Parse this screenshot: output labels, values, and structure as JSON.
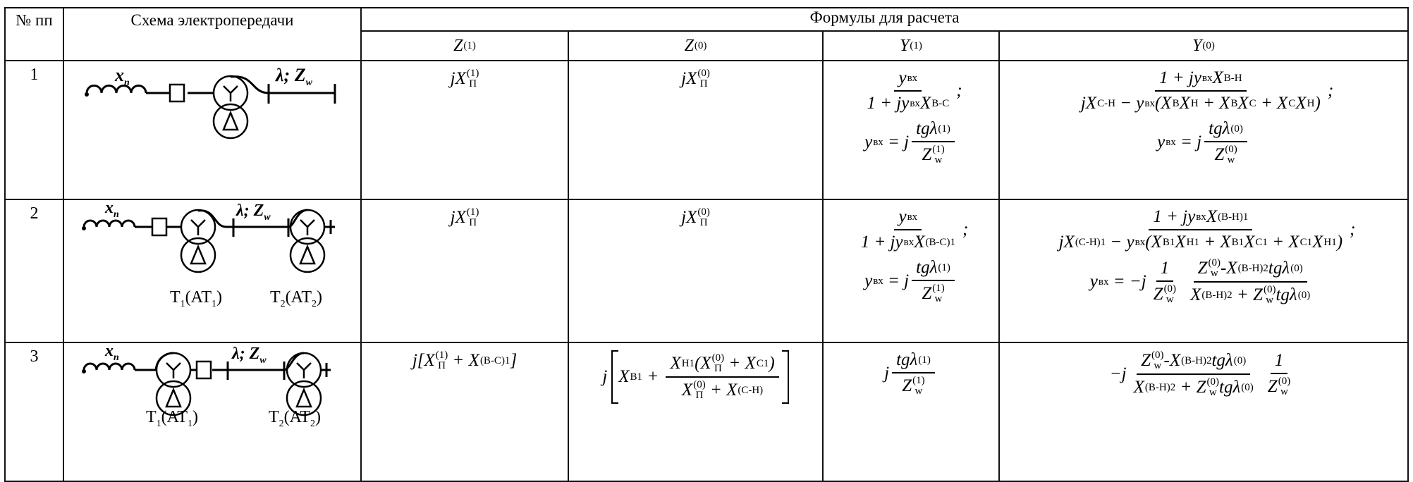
{
  "header": {
    "col_num": "№ пп",
    "col_scheme": "Схема электропередачи",
    "col_formulas": "Формулы для расчета",
    "sub": [
      {
        "base": "Z",
        "sup": "(1)"
      },
      {
        "base": "Z",
        "sup": "(0)"
      },
      {
        "base": "Y",
        "sup": "(1)"
      },
      {
        "base": "Y",
        "sup": "(0)"
      }
    ]
  },
  "rows": [
    {
      "num": "1",
      "scheme": {
        "xp": "x",
        "xp_sub": "п",
        "line": "λ; Z",
        "line_sub": "w"
      },
      "cells": [
        [
          [
            {
              "t": "jX",
              "sub": "П",
              "sup": "(1)"
            }
          ]
        ],
        [
          [
            {
              "t": "jX",
              "sub": "П",
              "sup": "(0)"
            }
          ]
        ],
        [
          [
            {
              "frac": {
                "num": [
                  {
                    "t": "y",
                    "sub": "вх"
                  }
                ],
                "den": [
                  {
                    "t": "1 + jy",
                    "sub": "вх"
                  },
                  {
                    "t": "X",
                    "sub": "В-С"
                  }
                ]
              }
            },
            {
              "t": ";"
            }
          ],
          [
            {
              "t": "y",
              "sub": "вх"
            },
            {
              "t": " = j"
            },
            {
              "frac": {
                "num": [
                  {
                    "t": "tgλ",
                    "sup": "(1)"
                  }
                ],
                "den": [
                  {
                    "t": "Z",
                    "sub": "w",
                    "sup": "(1)"
                  }
                ]
              }
            }
          ]
        ],
        [
          [
            {
              "frac": {
                "num": [
                  {
                    "t": "1 + jy",
                    "sub": "вх"
                  },
                  {
                    "t": "X",
                    "sub": "В-Н"
                  }
                ],
                "den": [
                  {
                    "t": "jX",
                    "sub": "С-Н"
                  },
                  {
                    "t": " − y",
                    "sub": "вх"
                  },
                  {
                    "t": "(X",
                    "sub": "В"
                  },
                  {
                    "t": "X",
                    "sub": "Н"
                  },
                  {
                    "t": " + X",
                    "sub": "В"
                  },
                  {
                    "t": "X",
                    "sub": "С"
                  },
                  {
                    "t": " + X",
                    "sub": "С"
                  },
                  {
                    "t": "X",
                    "sub": "Н"
                  },
                  {
                    "t": ")"
                  }
                ]
              }
            },
            {
              "t": ";"
            }
          ],
          [
            {
              "t": "y",
              "sub": "вх"
            },
            {
              "t": " = j"
            },
            {
              "frac": {
                "num": [
                  {
                    "t": "tgλ",
                    "sup": "(0)"
                  }
                ],
                "den": [
                  {
                    "t": "Z",
                    "sub": "w",
                    "sup": "(0)"
                  }
                ]
              }
            }
          ]
        ]
      ]
    },
    {
      "num": "2",
      "scheme": {
        "xp": "x",
        "xp_sub": "п",
        "line": "λ; Z",
        "line_sub": "w",
        "t1": "T",
        "t1_sub": "1",
        "t1_paren": "(AT",
        "t1_paren_sub": "1",
        "t2": "T",
        "t2_sub": "2",
        "t2_paren": "(AT",
        "t2_paren_sub": "2",
        "close": ")"
      },
      "cells": [
        [
          [
            {
              "t": "jX",
              "sub": "П",
              "sup": "(1)"
            }
          ]
        ],
        [
          [
            {
              "t": "jX",
              "sub": "П",
              "sup": "(0)"
            }
          ]
        ],
        [
          [
            {
              "frac": {
                "num": [
                  {
                    "t": "y",
                    "sub": "вх"
                  }
                ],
                "den": [
                  {
                    "t": "1 + jy",
                    "sub": "вх"
                  },
                  {
                    "t": "X",
                    "sub": "(В-С)1"
                  }
                ]
              }
            },
            {
              "t": ";"
            }
          ],
          [
            {
              "t": "y",
              "sub": "вх"
            },
            {
              "t": " = j"
            },
            {
              "frac": {
                "num": [
                  {
                    "t": "tgλ",
                    "sup": "(1)"
                  }
                ],
                "den": [
                  {
                    "t": "Z",
                    "sub": "w",
                    "sup": "(1)"
                  }
                ]
              }
            }
          ]
        ],
        [
          [
            {
              "frac": {
                "num": [
                  {
                    "t": "1 + jy",
                    "sub": "вх"
                  },
                  {
                    "t": "X",
                    "sub": "(В-Н)1"
                  }
                ],
                "den": [
                  {
                    "t": "jX",
                    "sub": "(С-Н)1"
                  },
                  {
                    "t": " − y",
                    "sub": "вх"
                  },
                  {
                    "t": "(X",
                    "sub": "В1"
                  },
                  {
                    "t": "X",
                    "sub": "Н1"
                  },
                  {
                    "t": " + X",
                    "sub": "В1"
                  },
                  {
                    "t": "X",
                    "sub": "С1"
                  },
                  {
                    "t": " + X",
                    "sub": "С1"
                  },
                  {
                    "t": "X",
                    "sub": "Н1"
                  },
                  {
                    "t": ")"
                  }
                ]
              }
            },
            {
              "t": ";"
            }
          ],
          [
            {
              "t": "y",
              "sub": "вх"
            },
            {
              "t": " = −j"
            },
            {
              "frac": {
                "num": [
                  {
                    "t": "1"
                  }
                ],
                "den": [
                  {
                    "t": "Z",
                    "sub": "w",
                    "sup": "(0)"
                  }
                ]
              }
            },
            {
              "frac": {
                "num": [
                  {
                    "t": "Z",
                    "sub": "w",
                    "sup": "(0)"
                  },
                  {
                    "t": "-X",
                    "sub": "(В-Н)2"
                  },
                  {
                    "t": "tgλ",
                    "sup": "(0)"
                  }
                ],
                "den": [
                  {
                    "t": "X",
                    "sub": "(В-Н)2"
                  },
                  {
                    "t": " + Z",
                    "sub": "w",
                    "sup": "(0)"
                  },
                  {
                    "t": "tgλ",
                    "sup": "(0)"
                  }
                ]
              }
            }
          ]
        ]
      ]
    },
    {
      "num": "3",
      "scheme": {
        "xp": "x",
        "xp_sub": "п",
        "line": "λ; Z",
        "line_sub": "w",
        "t1": "T",
        "t1_sub": "1",
        "t1_paren": "(AT",
        "t1_paren_sub": "1",
        "t2": "T",
        "t2_sub": "2",
        "t2_paren": "(AT",
        "t2_paren_sub": "2",
        "close": ")"
      },
      "cells": [
        [
          [
            {
              "t": "j[X",
              "sub": "П",
              "sup": "(1)"
            },
            {
              "t": " + X",
              "sub": "(В-С)1"
            },
            {
              "t": "]"
            }
          ]
        ],
        [
          [
            {
              "t": "j"
            },
            {
              "brk": [
                {
                  "t": "X",
                  "sub": "В1"
                },
                {
                  "t": " + "
                },
                {
                  "frac": {
                    "num": [
                      {
                        "t": "X",
                        "sub": "Н1"
                      },
                      {
                        "t": "(X",
                        "sub": "П",
                        "sup": "(0)"
                      },
                      {
                        "t": " + X",
                        "sub": "С1"
                      },
                      {
                        "t": ")"
                      }
                    ],
                    "den": [
                      {
                        "t": "X",
                        "sub": "П",
                        "sup": "(0)"
                      },
                      {
                        "t": " + X",
                        "sub": "(С-Н)"
                      }
                    ]
                  }
                }
              ]
            }
          ]
        ],
        [
          [
            {
              "t": "j"
            },
            {
              "frac": {
                "num": [
                  {
                    "t": "tgλ",
                    "sup": "(1)"
                  }
                ],
                "den": [
                  {
                    "t": "Z",
                    "sub": "w",
                    "sup": "(1)"
                  }
                ]
              }
            }
          ]
        ],
        [
          [
            {
              "t": "−j"
            },
            {
              "frac": {
                "num": [
                  {
                    "t": "Z",
                    "sub": "w",
                    "sup": "(0)"
                  },
                  {
                    "t": "-X",
                    "sub": "(В-Н)2"
                  },
                  {
                    "t": "tgλ",
                    "sup": "(0)"
                  }
                ],
                "den": [
                  {
                    "t": "X",
                    "sub": "(В-Н)2"
                  },
                  {
                    "t": " + Z",
                    "sub": "w",
                    "sup": "(0)"
                  },
                  {
                    "t": "tgλ",
                    "sup": "(0)"
                  }
                ]
              }
            },
            {
              "frac": {
                "num": [
                  {
                    "t": "1"
                  }
                ],
                "den": [
                  {
                    "t": "Z",
                    "sub": "w",
                    "sup": "(0)"
                  }
                ]
              }
            }
          ]
        ]
      ]
    }
  ]
}
